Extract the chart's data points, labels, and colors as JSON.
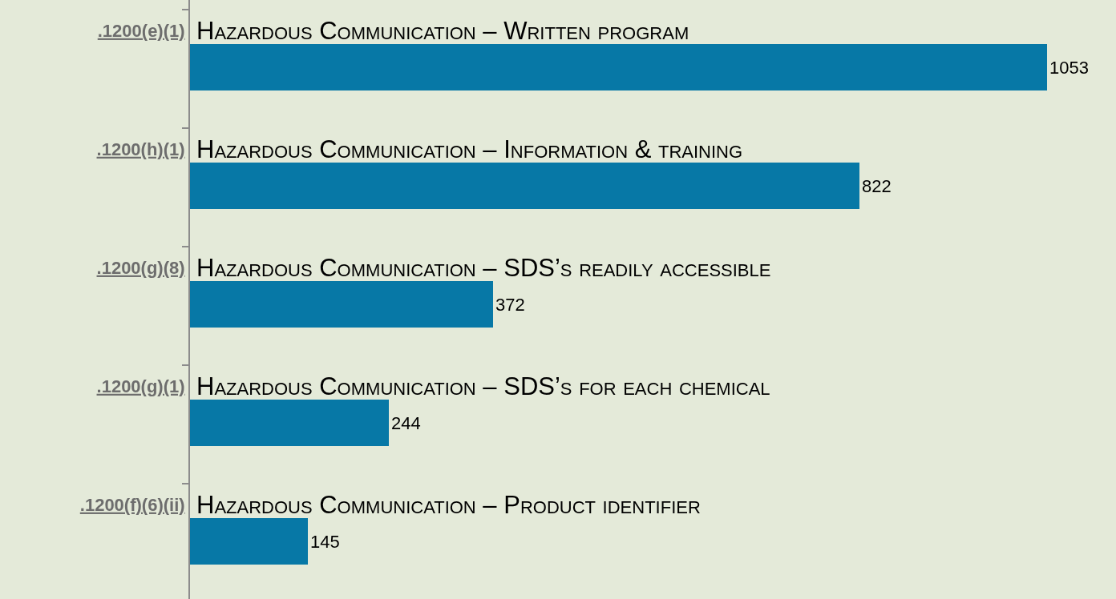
{
  "chart_data": {
    "type": "bar",
    "orientation": "horizontal",
    "categories": [
      ".1200(e)(1)",
      ".1200(h)(1)",
      ".1200(g)(8)",
      ".1200(g)(1)",
      ".1200(f)(6)(ii)"
    ],
    "values": [
      1053,
      822,
      372,
      244,
      145
    ],
    "color": "#0778a6",
    "data_labels": true,
    "grid": false,
    "legend": false,
    "tick_labels": "y",
    "annotations": [
      "Hazardous Communication – Written program",
      "Hazardous Communication – Information & training",
      "Hazardous Communication – SDS’s readily accessible",
      "Hazardous Communication – SDS’s for each chemical",
      "Hazardous Communication – Product identifier"
    ]
  }
}
